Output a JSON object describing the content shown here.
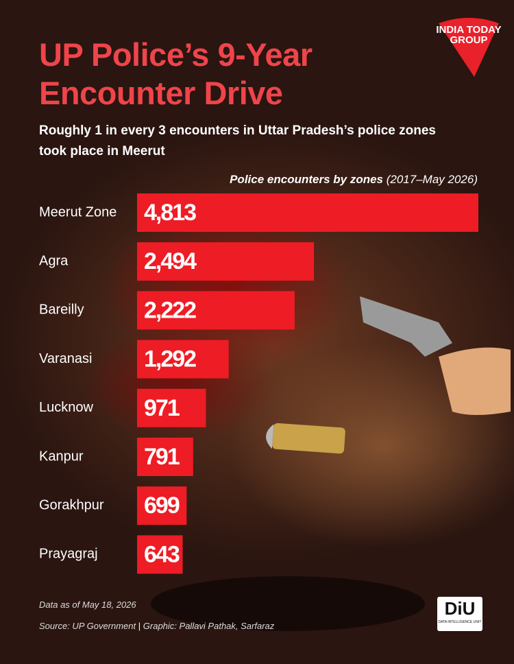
{
  "chart_data": {
    "type": "bar",
    "orientation": "horizontal",
    "title": "UP Police’s 9-Year Encounter Drive",
    "subtitle": "Roughly 1 in every 3 encounters in Uttar Pradesh’s police zones took place in Meerut",
    "measure": "Police encounters by zones",
    "period": "(2017–May 2026)",
    "categories": [
      "Meerut Zone",
      "Agra",
      "Bareilly",
      "Varanasi",
      "Lucknow",
      "Kanpur",
      "Gorakhpur",
      "Prayagraj"
    ],
    "values": [
      4813,
      2494,
      2222,
      1292,
      971,
      791,
      699,
      643
    ],
    "value_labels": [
      "4,813",
      "2,494",
      "2,222",
      "1,292",
      "971",
      "791",
      "699",
      "643"
    ],
    "color": "#ee1c25",
    "note": "Data as of May 18, 2026",
    "source": "Source: UP Government",
    "credit": "Graphic: Pallavi Pathak, Sarfaraz"
  },
  "logos": {
    "india_today": "INDIA TODAY GROUP",
    "diu": "DiU",
    "diu_full": "DATA INTELLIGENCE UNIT"
  }
}
